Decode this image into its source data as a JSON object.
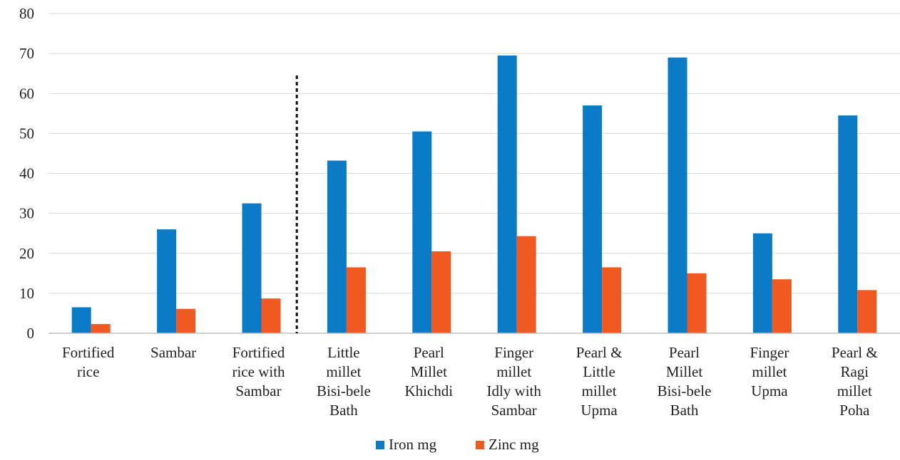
{
  "chart_data": {
    "type": "bar",
    "categories": [
      [
        "Fortified",
        "rice"
      ],
      [
        "Sambar"
      ],
      [
        "Fortified",
        "rice with",
        "Sambar"
      ],
      [
        "Little",
        "millet",
        "Bisi-bele",
        "Bath"
      ],
      [
        "Pearl",
        "Millet",
        "Khichdi"
      ],
      [
        "Finger",
        "millet",
        "Idly with",
        "Sambar"
      ],
      [
        "Pearl &",
        "Little",
        "millet",
        "Upma"
      ],
      [
        "Pearl",
        "Millet",
        "Bisi-bele",
        "Bath"
      ],
      [
        "Finger",
        "millet",
        "Upma"
      ],
      [
        "Pearl &",
        "Ragi",
        "millet",
        "Poha"
      ]
    ],
    "series": [
      {
        "name": "Iron mg",
        "color": "#0b7bc7",
        "values": [
          6.5,
          26,
          32.5,
          43.2,
          50.5,
          69.5,
          57,
          69,
          25,
          54.5
        ]
      },
      {
        "name": "Zinc mg",
        "color": "#f05a22",
        "values": [
          2.3,
          6.1,
          8.7,
          16.5,
          20.5,
          24.3,
          16.5,
          15,
          13.5,
          10.8
        ]
      }
    ],
    "ylim": [
      0,
      80
    ],
    "yticks": [
      0,
      10,
      20,
      30,
      40,
      50,
      60,
      70,
      80
    ],
    "grid": true,
    "legend_position": "bottom",
    "divider_after_category": 3
  }
}
